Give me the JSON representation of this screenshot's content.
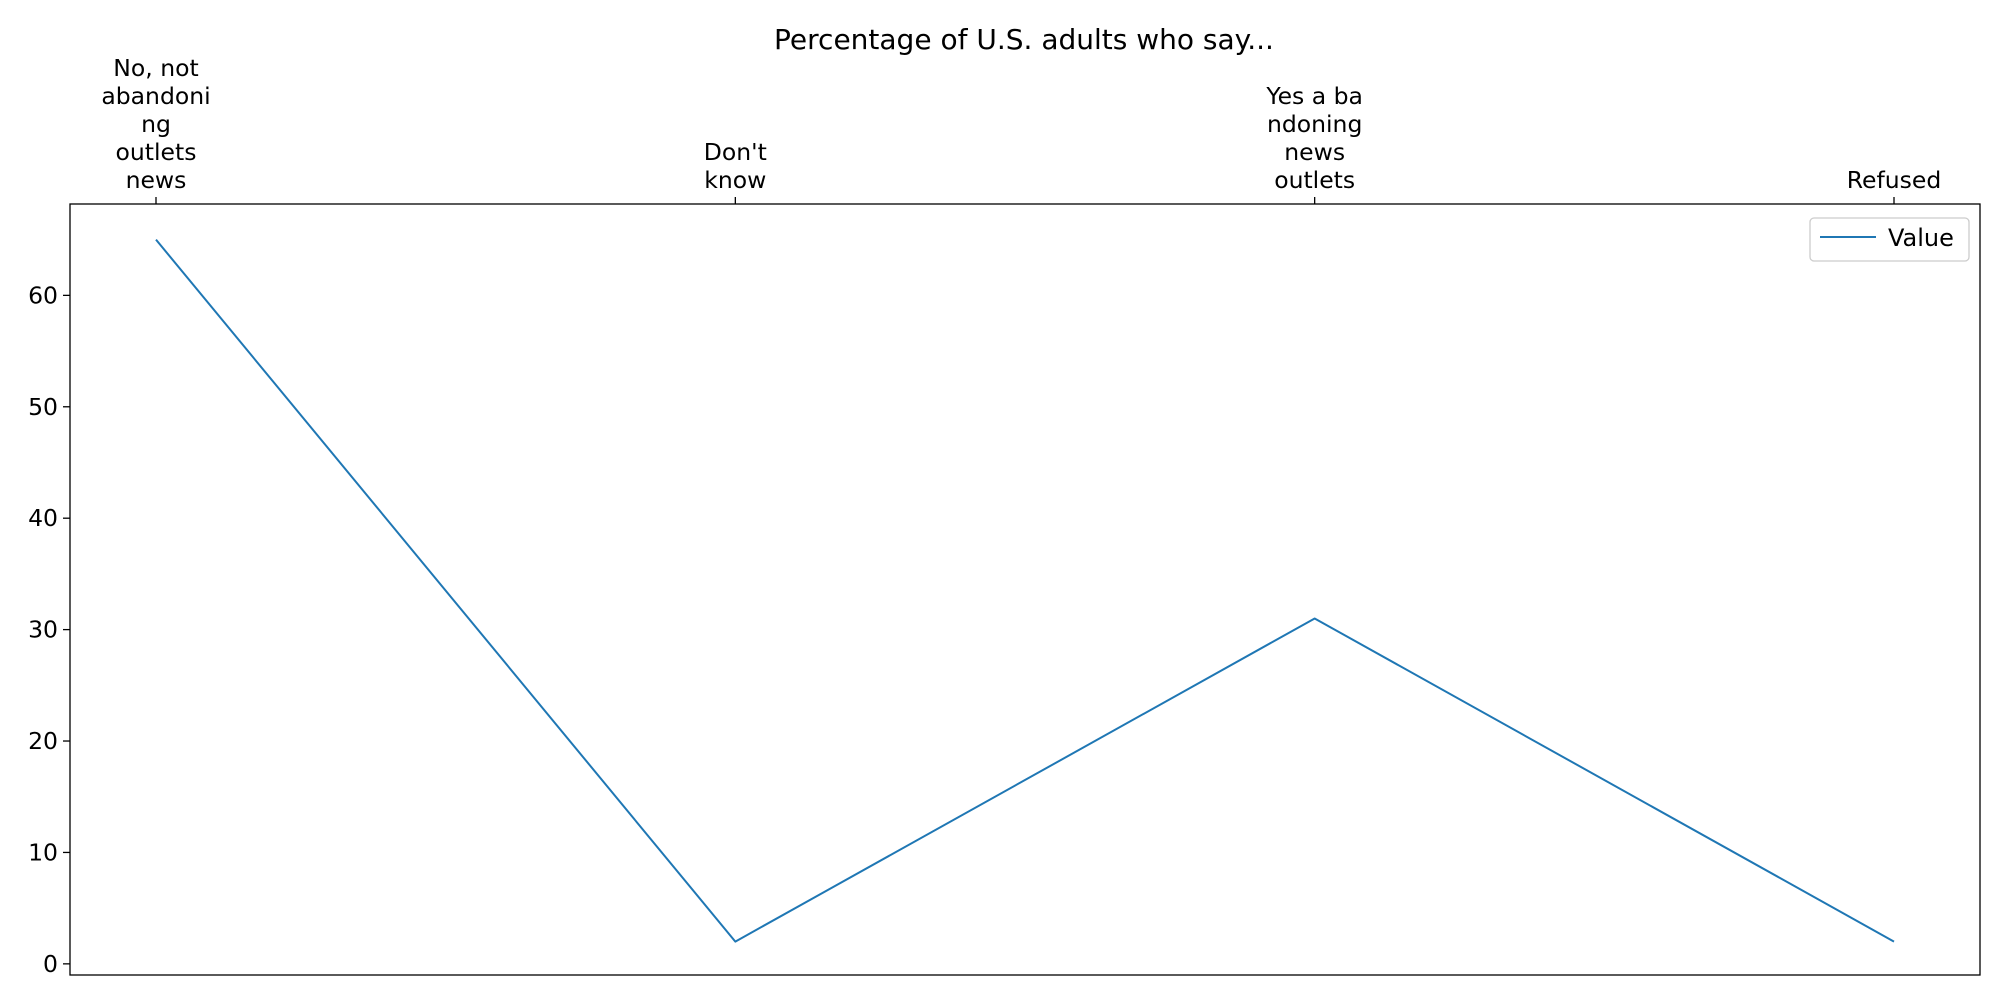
{
  "chart_data": {
    "type": "line",
    "title": "Percentage of U.S. adults who say...",
    "xlabel": "",
    "ylabel": "",
    "x_axis_position": "top",
    "categories": [
      "No, not abandoning outlets news",
      "Don't know",
      "Yes a bandoning news outlets",
      "Refused"
    ],
    "category_tick_lines": [
      [
        "No, not",
        "abandoni",
        "ng",
        "outlets",
        "news"
      ],
      [
        "Don't",
        "know"
      ],
      [
        "Yes a ba",
        "ndoning",
        "news",
        "outlets"
      ],
      [
        "Refused"
      ]
    ],
    "series": [
      {
        "name": "Value",
        "values": [
          65,
          2,
          31,
          2
        ]
      }
    ],
    "ylim": [
      -1,
      68.2
    ],
    "yticks": [
      0,
      10,
      20,
      30,
      40,
      50,
      60
    ],
    "grid": false,
    "legend_position": "upper right",
    "colors": {
      "series": "#1f77b4",
      "axis": "#000000",
      "legend_border": "#cccccc"
    }
  }
}
